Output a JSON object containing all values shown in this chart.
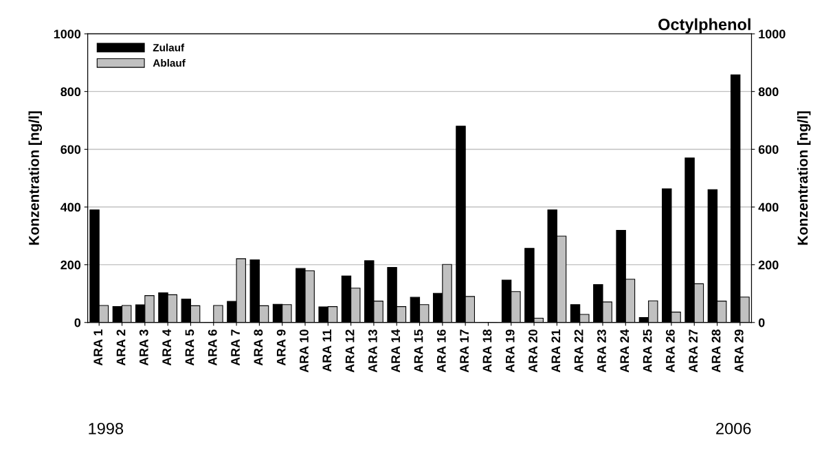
{
  "chart_data": {
    "type": "bar",
    "title": "Octylphenol",
    "ylabel": "Konzentration [ng/l]",
    "y2label": "Konzentration [ng/l]",
    "categories": [
      "ARA 1",
      "ARA 2",
      "ARA 3",
      "ARA 4",
      "ARA 5",
      "ARA 6",
      "ARA 7",
      "ARA 8",
      "ARA 9",
      "ARA 10",
      "ARA 11",
      "ARA 12",
      "ARA 13",
      "ARA 14",
      "ARA 15",
      "ARA 16",
      "ARA 17",
      "ARA 18",
      "ARA 19",
      "ARA 20",
      "ARA 21",
      "ARA 22",
      "ARA 23",
      "ARA 24",
      "ARA 25",
      "ARA 26",
      "ARA 27",
      "ARA 28",
      "ARA 29"
    ],
    "series": [
      {
        "name": "Zulauf",
        "color": "#000000",
        "values": [
          390,
          55,
          61,
          103,
          81,
          0,
          73,
          217,
          63,
          187,
          54,
          161,
          214,
          191,
          87,
          101,
          680,
          0,
          147,
          257,
          390,
          62,
          131,
          319,
          17,
          463,
          570,
          460,
          858
        ]
      },
      {
        "name": "Ablauf",
        "color": "#c0c0c0",
        "values": [
          59,
          59,
          93,
          96,
          58,
          59,
          221,
          58,
          62,
          179,
          55,
          119,
          74,
          55,
          62,
          201,
          90,
          0,
          107,
          15,
          299,
          28,
          71,
          150,
          75,
          36,
          134,
          74,
          88
        ]
      }
    ],
    "ylim": [
      0,
      1000
    ],
    "yticks": [
      0,
      200,
      400,
      600,
      800,
      1000
    ],
    "y2lim": [
      0,
      1000
    ],
    "y2ticks": [
      0,
      200,
      400,
      600,
      800,
      1000
    ],
    "grid": "y",
    "legend": "top left",
    "annotations": [
      "1998",
      "2006"
    ]
  }
}
